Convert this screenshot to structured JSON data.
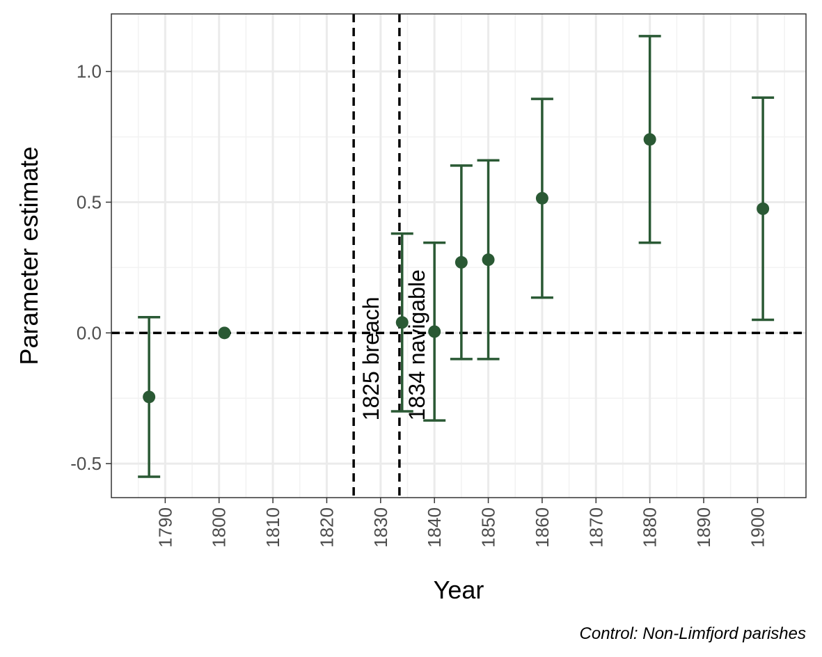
{
  "chart_data": {
    "type": "scatter",
    "title": "",
    "xlabel": "Year",
    "ylabel": "Parameter estimate",
    "caption": "Control: Non-Limfjord parishes",
    "xlim": [
      1780,
      1909
    ],
    "ylim": [
      -0.63,
      1.22
    ],
    "x_ticks": [
      1790,
      1800,
      1810,
      1820,
      1830,
      1840,
      1850,
      1860,
      1870,
      1880,
      1890,
      1900
    ],
    "y_ticks": [
      -0.5,
      0.0,
      0.5,
      1.0
    ],
    "y_tick_labels": [
      "-0.5",
      "0.0",
      "0.5",
      "1.0"
    ],
    "x_tick_labels": [
      "1790",
      "1800",
      "1810",
      "1820",
      "1830",
      "1840",
      "1850",
      "1860",
      "1870",
      "1880",
      "1890",
      "1900"
    ],
    "grid": true,
    "reference_lines": [
      {
        "orientation": "vertical",
        "x": 1825,
        "style": "dashed",
        "label": "1825 breach"
      },
      {
        "orientation": "vertical",
        "x": 1833.5,
        "style": "dashed",
        "label": "1834 navigable"
      },
      {
        "orientation": "horizontal",
        "y": 0.0,
        "style": "dashed"
      }
    ],
    "point_color": "#2a5934",
    "points": [
      {
        "x": 1787,
        "y": -0.245,
        "lower": -0.55,
        "upper": 0.06
      },
      {
        "x": 1801,
        "y": 0.0,
        "lower": null,
        "upper": null
      },
      {
        "x": 1834,
        "y": 0.04,
        "lower": -0.3,
        "upper": 0.38
      },
      {
        "x": 1840,
        "y": 0.005,
        "lower": -0.335,
        "upper": 0.345
      },
      {
        "x": 1845,
        "y": 0.27,
        "lower": -0.1,
        "upper": 0.64
      },
      {
        "x": 1850,
        "y": 0.28,
        "lower": -0.1,
        "upper": 0.66
      },
      {
        "x": 1860,
        "y": 0.515,
        "lower": 0.135,
        "upper": 0.895
      },
      {
        "x": 1880,
        "y": 0.74,
        "lower": 0.345,
        "upper": 1.135
      },
      {
        "x": 1901,
        "y": 0.475,
        "lower": 0.05,
        "upper": 0.9
      }
    ]
  }
}
